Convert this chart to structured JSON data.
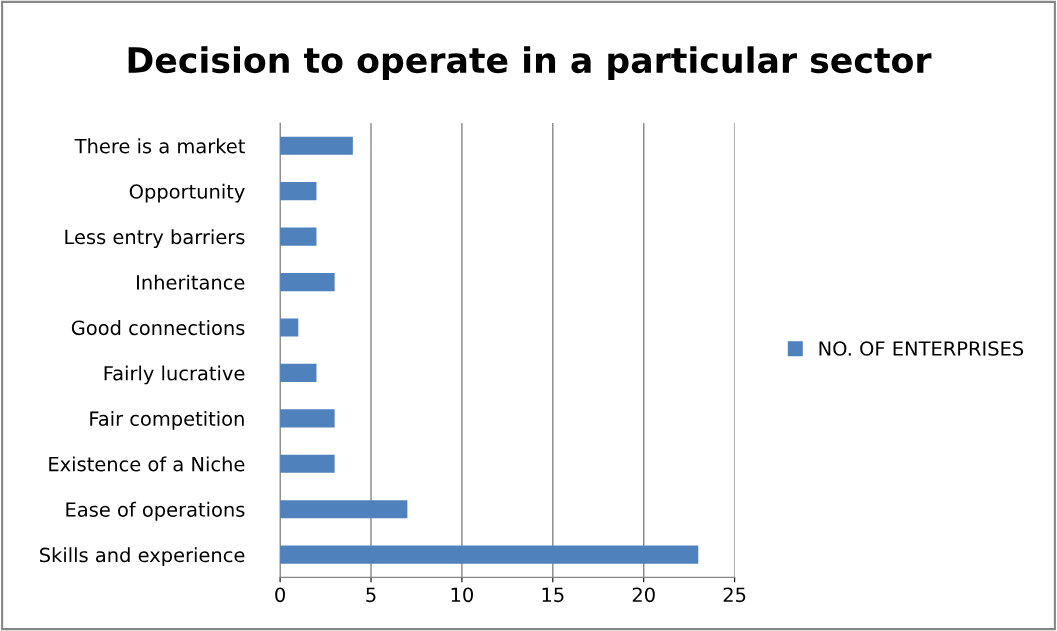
{
  "chart_data": {
    "type": "bar",
    "orientation": "horizontal",
    "title": "Decision to operate in a particular sector",
    "categories": [
      "There is a market",
      "Opportunity",
      "Less entry barriers",
      "Inheritance",
      "Good connections",
      "Fairly lucrative",
      "Fair competition",
      "Existence of a Niche",
      "Ease of operations",
      "Skills and experience"
    ],
    "series": [
      {
        "name": "NO. OF ENTERPRISES",
        "color": "#4f81bd",
        "values": [
          4,
          2,
          2,
          3,
          1,
          2,
          3,
          3,
          7,
          23
        ]
      }
    ],
    "xlim": [
      0,
      25
    ],
    "xticks": [
      0,
      5,
      10,
      15,
      20,
      25
    ],
    "grid": "x",
    "legend": "right"
  }
}
